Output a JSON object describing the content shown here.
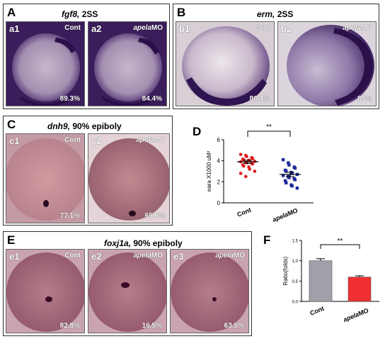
{
  "panels": {
    "A": {
      "label": "A",
      "gene": "fgf8,",
      "stage": "2SS",
      "images": [
        {
          "sub": "a1",
          "cond": "Cont",
          "pct": "89.3%"
        },
        {
          "sub": "a2",
          "cond_italic": "apela",
          "cond_rest": "MO",
          "pct": "84.4%"
        }
      ]
    },
    "B": {
      "label": "B",
      "gene": "erm,",
      "stage": "2SS",
      "images": [
        {
          "sub": "b1",
          "cond": "Cont",
          "pct": "86.4%"
        },
        {
          "sub": "b2",
          "cond_italic": "apela",
          "cond_rest": "MO",
          "pct": "85%"
        }
      ]
    },
    "C": {
      "label": "C",
      "gene": "dnh9,",
      "stage": "90% epiboly",
      "images": [
        {
          "sub": "c1",
          "cond": "Cont",
          "pct": "77.1%"
        },
        {
          "sub": "c2",
          "cond_italic": "apela",
          "cond_rest": "MO",
          "pct": "65.6%"
        }
      ]
    },
    "E": {
      "label": "E",
      "gene": "foxj1a,",
      "stage": "90% epiboly",
      "images": [
        {
          "sub": "e1",
          "cond": "Cont",
          "pct": "82.8%"
        },
        {
          "sub": "e2",
          "cond_italic": "apela",
          "cond_rest": "MO",
          "pct": "16.5%"
        },
        {
          "sub": "e3",
          "cond_italic": "apela",
          "cond_rest": "MO",
          "pct": "63.5%"
        }
      ]
    }
  },
  "colors": {
    "blue_stain": "#3b1a5c",
    "pink_stain": "#8a5a5e",
    "cont": "#e01818",
    "mo": "#1c2a9a",
    "bar_cont": "#a0a0a8",
    "bar_mo": "#f03030"
  },
  "chart_data": [
    {
      "panel": "D",
      "type": "scatter",
      "ylabel": "eara X1000 uM²",
      "categories": [
        {
          "name": "Cont",
          "italic": "",
          "rest": "Cont"
        },
        {
          "name": "apelaMO",
          "italic": "apela",
          "rest": "MO"
        }
      ],
      "ylim": [
        0,
        6
      ],
      "yticks": [
        0,
        2,
        4,
        6
      ],
      "significance": "**",
      "series": [
        {
          "name": "Cont",
          "mean": 3.9,
          "sem": 0.15,
          "values": [
            4.6,
            4.5,
            4.4,
            4.3,
            4.2,
            4.15,
            4.1,
            4.05,
            4.0,
            3.95,
            3.9,
            3.85,
            3.8,
            3.75,
            3.7,
            3.6,
            3.5,
            3.4,
            3.2,
            3.0,
            2.8,
            2.5
          ]
        },
        {
          "name": "apelaMO",
          "mean": 2.7,
          "sem": 0.2,
          "values": [
            4.1,
            3.8,
            3.6,
            3.4,
            3.3,
            3.1,
            3.0,
            2.9,
            2.8,
            2.7,
            2.6,
            2.5,
            2.4,
            2.3,
            2.2,
            2.1,
            1.9,
            1.7,
            1.6,
            1.4
          ]
        }
      ]
    },
    {
      "panel": "F",
      "type": "bar",
      "ylabel": "Ratio(folds)",
      "categories": [
        {
          "name": "Cont",
          "italic": "",
          "rest": "Cont"
        },
        {
          "name": "apelaMO",
          "italic": "apela",
          "rest": "MO"
        }
      ],
      "values": [
        1.0,
        0.6
      ],
      "errors": [
        0.05,
        0.03
      ],
      "ylim": [
        0,
        1.5
      ],
      "yticks": [
        0.0,
        0.5,
        1.0,
        1.5
      ],
      "ytick_labels": [
        "0.0",
        "0.5",
        "1.0",
        "1.5"
      ],
      "significance": "**"
    }
  ],
  "figure_labels": {
    "D": "D",
    "F": "F"
  }
}
